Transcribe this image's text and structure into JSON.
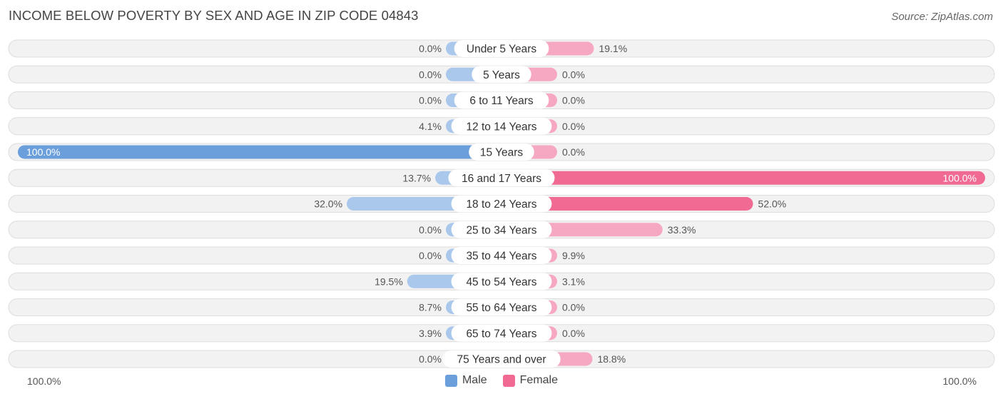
{
  "chart_data": {
    "type": "bar",
    "orientation": "horizontal-diverging",
    "title": "INCOME BELOW POVERTY BY SEX AND AGE IN ZIP CODE 04843",
    "source": "Source: ZipAtlas.com",
    "categories": [
      "Under 5 Years",
      "5 Years",
      "6 to 11 Years",
      "12 to 14 Years",
      "15 Years",
      "16 and 17 Years",
      "18 to 24 Years",
      "25 to 34 Years",
      "35 to 44 Years",
      "45 to 54 Years",
      "55 to 64 Years",
      "65 to 74 Years",
      "75 Years and over"
    ],
    "series": [
      {
        "name": "Male",
        "values": [
          0.0,
          0.0,
          0.0,
          4.1,
          100.0,
          13.7,
          32.0,
          0.0,
          0.0,
          19.5,
          8.7,
          3.9,
          0.0
        ],
        "labels": [
          "0.0%",
          "0.0%",
          "0.0%",
          "4.1%",
          "100.0%",
          "13.7%",
          "32.0%",
          "0.0%",
          "0.0%",
          "19.5%",
          "8.7%",
          "3.9%",
          "0.0%"
        ]
      },
      {
        "name": "Female",
        "values": [
          19.1,
          0.0,
          0.0,
          0.0,
          0.0,
          100.0,
          52.0,
          33.3,
          9.9,
          3.1,
          0.0,
          0.0,
          18.8
        ],
        "labels": [
          "19.1%",
          "0.0%",
          "0.0%",
          "0.0%",
          "0.0%",
          "100.0%",
          "52.0%",
          "33.3%",
          "9.9%",
          "3.1%",
          "0.0%",
          "0.0%",
          "18.8%"
        ]
      }
    ],
    "xlim": [
      -100,
      100
    ],
    "axis_left_label": "100.0%",
    "axis_right_label": "100.0%",
    "legend_position": "bottom-center",
    "colors": {
      "male_strong": "#6a9fdc",
      "male_light": "#a9c8ec",
      "female_strong": "#f06a94",
      "female_light": "#f6a8c2",
      "track": "#f2f2f2",
      "track_border": "#dddddd"
    }
  },
  "legend": {
    "male": "Male",
    "female": "Female"
  }
}
